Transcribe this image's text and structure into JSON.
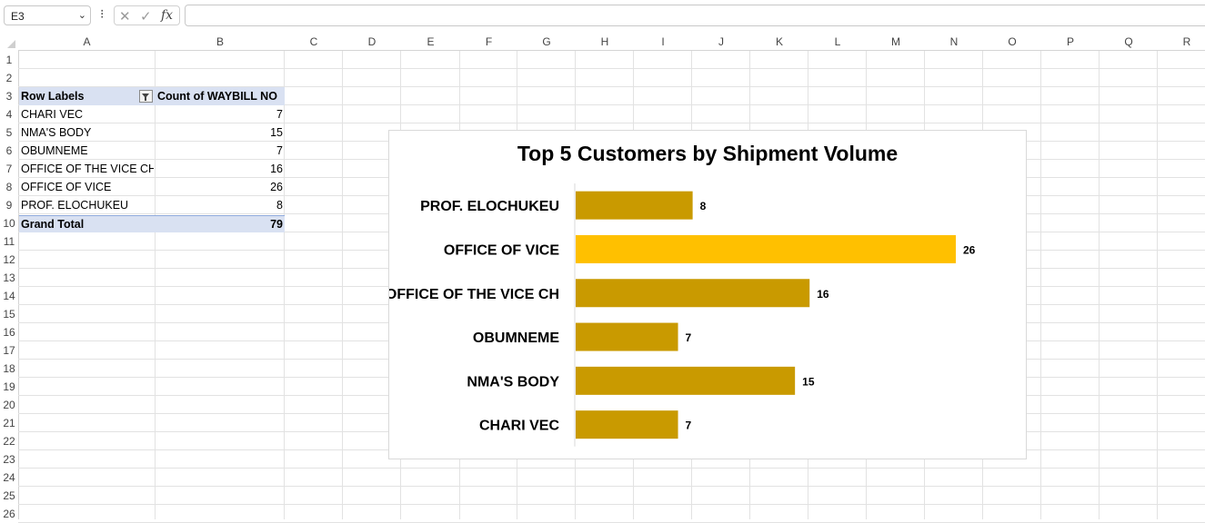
{
  "formula_bar": {
    "name_box": "E3",
    "name_box_arrow": "⌄",
    "more": "⁝",
    "cancel": "✕",
    "enter": "✓",
    "fx": "fx",
    "formula": ""
  },
  "columns": [
    "A",
    "B",
    "C",
    "D",
    "E",
    "F",
    "G",
    "H",
    "I",
    "J",
    "K",
    "L",
    "M",
    "N",
    "O",
    "P",
    "Q",
    "R"
  ],
  "rows": [
    "1",
    "2",
    "3",
    "4",
    "5",
    "6",
    "7",
    "8",
    "9",
    "10",
    "11",
    "12",
    "13",
    "14",
    "15",
    "16",
    "17",
    "18",
    "19",
    "20",
    "21",
    "22",
    "23",
    "24",
    "25",
    "26"
  ],
  "pivot": {
    "header_label": "Row Labels",
    "header_value": "Count of WAYBILL NO",
    "rows": [
      {
        "label": "CHARI VEC",
        "value": "7"
      },
      {
        "label": "NMA'S BODY",
        "value": "15"
      },
      {
        "label": "OBUMNEME",
        "value": "7"
      },
      {
        "label": "OFFICE OF THE VICE CH",
        "value": "16"
      },
      {
        "label": "OFFICE OF VICE",
        "value": "26"
      },
      {
        "label": "PROF. ELOCHUKEU",
        "value": "8"
      }
    ],
    "total_label": "Grand Total",
    "total_value": "79"
  },
  "chart_data": {
    "type": "bar",
    "orientation": "horizontal",
    "title": "Top 5 Customers by Shipment Volume",
    "categories": [
      "PROF. ELOCHUKEU",
      "OFFICE OF VICE",
      "OFFICE OF THE VICE CH",
      "OBUMNEME",
      "NMA'S BODY",
      "CHARI VEC"
    ],
    "values": [
      8,
      26,
      16,
      7,
      15,
      7
    ],
    "data_labels": [
      "8",
      "26",
      "16",
      "7",
      "15",
      "7"
    ],
    "bar_color": "#c99a00",
    "highlight_color": "#ffc000",
    "highlight_category": "OFFICE OF VICE",
    "xlim": [
      0,
      30
    ],
    "grid": false,
    "legend": "none"
  }
}
